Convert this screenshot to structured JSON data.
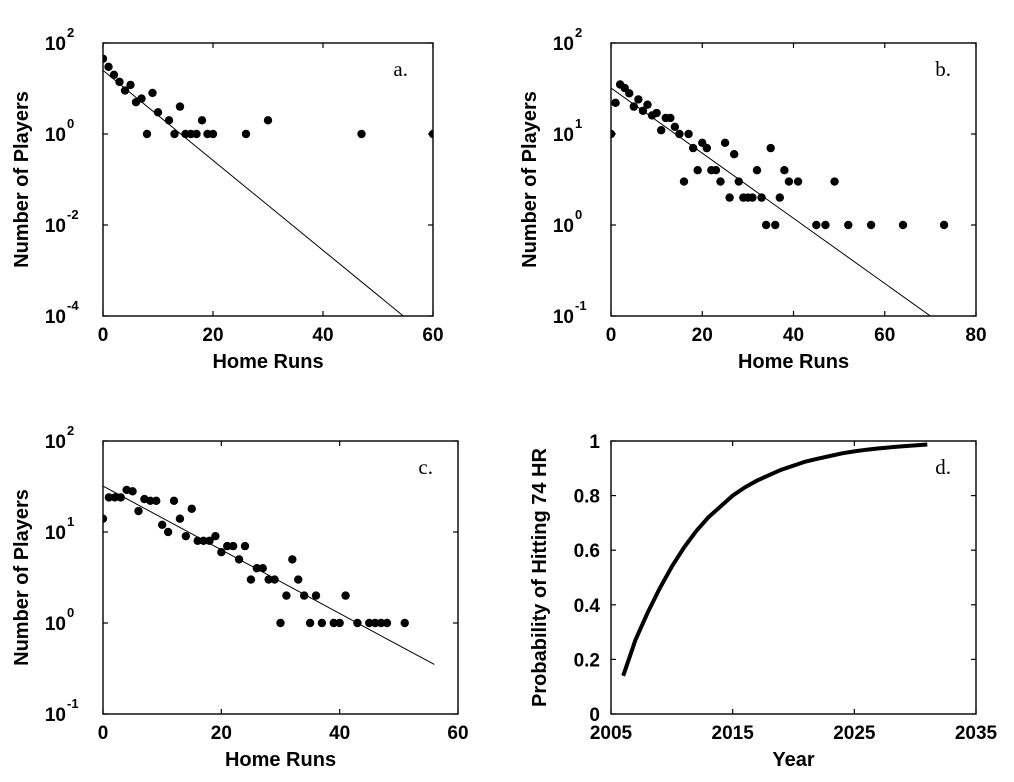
{
  "chart_data": [
    {
      "type": "scatter",
      "panel": "a.",
      "xlabel": "Home Runs",
      "ylabel": "Number of Players",
      "xlim": [
        0,
        60
      ],
      "ylim": [
        0.0001,
        100
      ],
      "yscale": "log",
      "xticks": [
        0,
        20,
        40,
        60
      ],
      "yticks": [
        {
          "base": "10",
          "exp": "-4",
          "value": 0.0001
        },
        {
          "base": "10",
          "exp": "-2",
          "value": 0.01
        },
        {
          "base": "10",
          "exp": "0",
          "value": 1
        },
        {
          "base": "10",
          "exp": "2",
          "value": 100
        }
      ],
      "series": [
        {
          "kind": "points",
          "x": [
            0,
            1,
            2,
            3,
            4,
            5,
            6,
            7,
            8,
            9,
            10,
            12,
            13,
            14,
            15,
            16,
            17,
            18,
            19,
            20,
            26,
            30,
            47,
            60
          ],
          "y": [
            45,
            30,
            20,
            14,
            9,
            12,
            5,
            6,
            1,
            8,
            3,
            2,
            1,
            4,
            1,
            1,
            1,
            2,
            1,
            1,
            1,
            2,
            1,
            1
          ]
        },
        {
          "kind": "fit",
          "x": [
            0,
            54.6
          ],
          "y": [
            25,
            0.0001
          ]
        }
      ]
    },
    {
      "type": "scatter",
      "panel": "b.",
      "xlabel": "Home Runs",
      "ylabel": "Number of Players",
      "xlim": [
        0,
        80
      ],
      "ylim": [
        0.1,
        100
      ],
      "yscale": "log",
      "xticks": [
        0,
        20,
        40,
        60,
        80
      ],
      "yticks": [
        {
          "base": "10",
          "exp": "-1",
          "value": 0.1
        },
        {
          "base": "10",
          "exp": "0",
          "value": 1
        },
        {
          "base": "10",
          "exp": "1",
          "value": 10
        },
        {
          "base": "10",
          "exp": "2",
          "value": 100
        }
      ],
      "series": [
        {
          "kind": "points",
          "x": [
            0,
            1,
            2,
            3,
            4,
            5,
            6,
            7,
            8,
            9,
            10,
            11,
            12,
            13,
            14,
            15,
            16,
            17,
            18,
            19,
            20,
            21,
            22,
            23,
            24,
            25,
            26,
            27,
            28,
            29,
            30,
            31,
            32,
            33,
            34,
            35,
            36,
            37,
            38,
            39,
            41,
            45,
            47,
            49,
            52,
            57,
            64,
            73
          ],
          "y": [
            10,
            22,
            35,
            32,
            28,
            20,
            24,
            18,
            21,
            16,
            17,
            11,
            15,
            15,
            12,
            10,
            3,
            10,
            7,
            4,
            8,
            7,
            4,
            4,
            3,
            8,
            2,
            6,
            3,
            2,
            2,
            2,
            4,
            2,
            1,
            7,
            1,
            2,
            4,
            3,
            3,
            1,
            1,
            3,
            1,
            1,
            1,
            1
          ]
        },
        {
          "kind": "fit",
          "x": [
            0,
            70
          ],
          "y": [
            32,
            0.1
          ]
        }
      ]
    },
    {
      "type": "scatter",
      "panel": "c.",
      "xlabel": "Home Runs",
      "ylabel": "Number of Players",
      "xlim": [
        0,
        60
      ],
      "ylim": [
        0.1,
        100
      ],
      "yscale": "log",
      "xticks": [
        0,
        20,
        40,
        60
      ],
      "yticks": [
        {
          "base": "10",
          "exp": "-1",
          "value": 0.1
        },
        {
          "base": "10",
          "exp": "0",
          "value": 1
        },
        {
          "base": "10",
          "exp": "1",
          "value": 10
        },
        {
          "base": "10",
          "exp": "2",
          "value": 100
        }
      ],
      "series": [
        {
          "kind": "points",
          "x": [
            0,
            1,
            2,
            3,
            4,
            5,
            6,
            7,
            8,
            9,
            10,
            11,
            12,
            13,
            14,
            15,
            16,
            17,
            18,
            19,
            20,
            21,
            22,
            23,
            24,
            25,
            26,
            27,
            28,
            29,
            30,
            31,
            32,
            33,
            34,
            35,
            36,
            37,
            39,
            40,
            41,
            43,
            45,
            46,
            47,
            48,
            51
          ],
          "y": [
            14,
            24,
            24,
            24,
            29,
            28,
            17,
            23,
            22,
            22,
            12,
            10,
            22,
            14,
            9,
            18,
            8,
            8,
            8,
            9,
            6,
            7,
            7,
            5,
            7,
            3,
            4,
            4,
            3,
            3,
            1,
            2,
            5,
            3,
            2,
            1,
            2,
            1,
            1,
            1,
            2,
            1,
            1,
            1,
            1,
            1,
            1
          ]
        },
        {
          "kind": "fit",
          "x": [
            0,
            56
          ],
          "y": [
            32,
            0.35
          ]
        }
      ]
    },
    {
      "type": "line",
      "panel": "d.",
      "xlabel": "Year",
      "ylabel": "Probability of Hitting 74 HR",
      "xlim": [
        2005,
        2035
      ],
      "ylim": [
        0,
        1
      ],
      "yscale": "linear",
      "xticks": [
        2005,
        2015,
        2025,
        2035
      ],
      "yticks": [
        {
          "base": "0",
          "exp": "",
          "value": 0
        },
        {
          "base": "0.2",
          "exp": "",
          "value": 0.2
        },
        {
          "base": "0.4",
          "exp": "",
          "value": 0.4
        },
        {
          "base": "0.6",
          "exp": "",
          "value": 0.6
        },
        {
          "base": "0.8",
          "exp": "",
          "value": 0.8
        },
        {
          "base": "1",
          "exp": "",
          "value": 1
        }
      ],
      "series": [
        {
          "kind": "curve",
          "x": [
            2006,
            2007,
            2008,
            2009,
            2010,
            2011,
            2012,
            2013,
            2014,
            2015,
            2016,
            2017,
            2018,
            2019,
            2020,
            2021,
            2022,
            2023,
            2024,
            2025,
            2026,
            2027,
            2028,
            2029,
            2030,
            2031
          ],
          "y": [
            0.14,
            0.27,
            0.37,
            0.46,
            0.54,
            0.61,
            0.67,
            0.72,
            0.76,
            0.8,
            0.83,
            0.855,
            0.875,
            0.895,
            0.91,
            0.925,
            0.935,
            0.945,
            0.955,
            0.962,
            0.968,
            0.973,
            0.977,
            0.981,
            0.984,
            0.987
          ]
        }
      ]
    }
  ]
}
